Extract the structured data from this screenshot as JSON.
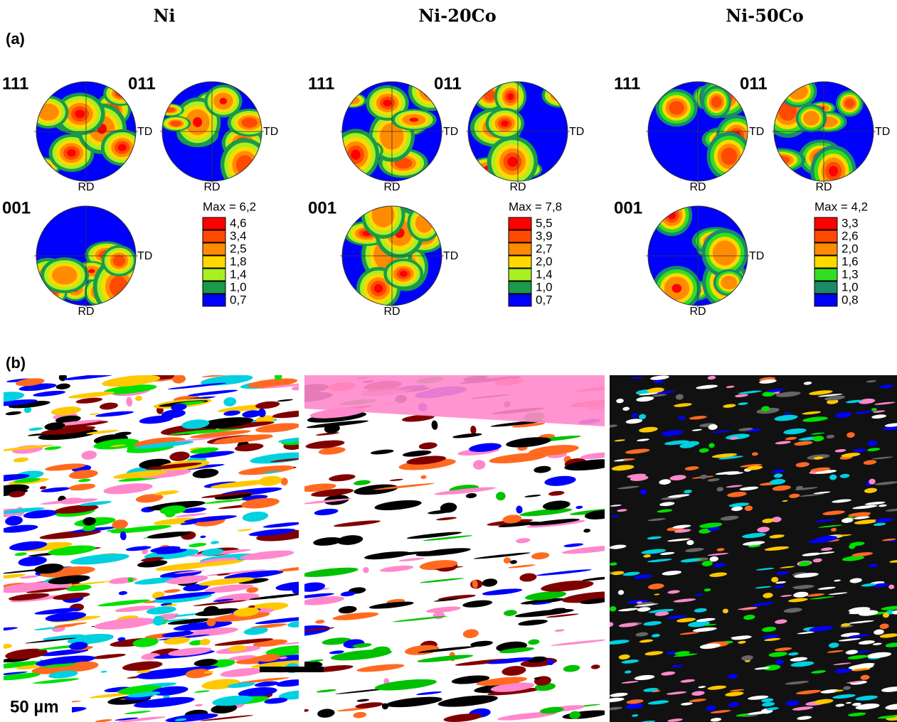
{
  "panel_labels": [
    "(a)",
    "(b)"
  ],
  "scale_bar": "50 µm",
  "columns": [
    {
      "title": "Ni",
      "pole_figures": [
        {
          "label": "111",
          "td": "TD",
          "rd": "RD"
        },
        {
          "label": "011",
          "td": "TD",
          "rd": "RD"
        },
        {
          "label": "001",
          "td": "TD",
          "rd": "RD"
        }
      ],
      "legend": {
        "max": "Max = 6,2",
        "levels": [
          {
            "label": "4,6",
            "color": "#ff0000"
          },
          {
            "label": "3,4",
            "color": "#ff4a00"
          },
          {
            "label": "2,5",
            "color": "#ff8c00"
          },
          {
            "label": "1,8",
            "color": "#ffd800"
          },
          {
            "label": "1,4",
            "color": "#a8f020"
          },
          {
            "label": "1,0",
            "color": "#1a9a4a"
          },
          {
            "label": "0,7",
            "color": "#0000ff"
          }
        ]
      }
    },
    {
      "title": "Ni-20Co",
      "pole_figures": [
        {
          "label": "111",
          "td": "TD",
          "rd": "RD"
        },
        {
          "label": "011",
          "td": "TD",
          "rd": "RD"
        },
        {
          "label": "001",
          "td": "TD",
          "rd": "RD"
        }
      ],
      "legend": {
        "max": "Max = 7,8",
        "levels": [
          {
            "label": "5,5",
            "color": "#ff0000"
          },
          {
            "label": "3,9",
            "color": "#ff4a00"
          },
          {
            "label": "2,7",
            "color": "#ff8c00"
          },
          {
            "label": "2,0",
            "color": "#ffd800"
          },
          {
            "label": "1,4",
            "color": "#a8f020"
          },
          {
            "label": "1,0",
            "color": "#1a9a4a"
          },
          {
            "label": "0,7",
            "color": "#0000ff"
          }
        ]
      }
    },
    {
      "title": "Ni-50Co",
      "pole_figures": [
        {
          "label": "111",
          "td": "TD",
          "rd": "RD"
        },
        {
          "label": "011",
          "td": "TD",
          "rd": "RD"
        },
        {
          "label": "001",
          "td": "TD",
          "rd": "RD"
        }
      ],
      "legend": {
        "max": "Max = 4,2",
        "levels": [
          {
            "label": "3,3",
            "color": "#ff0000"
          },
          {
            "label": "2,6",
            "color": "#ff4a00"
          },
          {
            "label": "2,0",
            "color": "#ff8c00"
          },
          {
            "label": "1,6",
            "color": "#ffd800"
          },
          {
            "label": "1,3",
            "color": "#30e020"
          },
          {
            "label": "1,0",
            "color": "#1a8a6a"
          },
          {
            "label": "0,8",
            "color": "#0000ff"
          }
        ]
      }
    }
  ]
}
